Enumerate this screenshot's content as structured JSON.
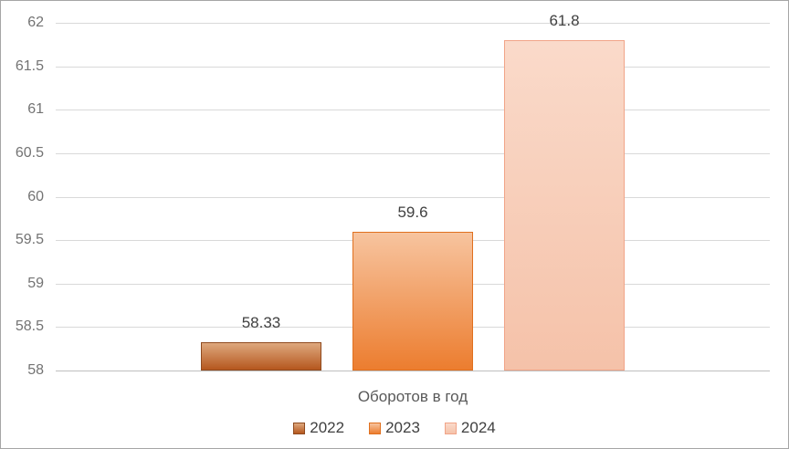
{
  "frame": {
    "background": "#ffffff",
    "border_color": "#a6a6a6"
  },
  "chart_data": {
    "type": "bar",
    "title": "",
    "categories": [
      "Оборотов в год"
    ],
    "series": [
      {
        "name": "2022",
        "value": 58.33,
        "label": "58.33",
        "fill_top": "#dea87e",
        "fill_bottom": "#b5571e",
        "border": "#8f4a1f"
      },
      {
        "name": "2023",
        "value": 59.6,
        "label": "59.6",
        "fill_top": "#f7c49f",
        "fill_bottom": "#ec7d2f",
        "border": "#e0701f"
      },
      {
        "name": "2024",
        "value": 61.8,
        "label": "61.8",
        "fill_top": "#fadaca",
        "fill_bottom": "#f5c2a9",
        "border": "#f1a488"
      }
    ],
    "xlabel": "Оборотов в год",
    "ylabel": "",
    "ylim": [
      58,
      62
    ],
    "ytick_step": 0.5,
    "yticks": [
      "62",
      "61.5",
      "61",
      "60.5",
      "60",
      "59.5",
      "59",
      "58.5",
      "58"
    ],
    "grid": true,
    "legend_position": "bottom",
    "legend_labels": [
      "2022",
      "2023",
      "2024"
    ],
    "colors": {
      "gridline": "#d9d9d9",
      "axis_line": "#bfbfbf",
      "tick_label": "#737373",
      "data_label": "#404040",
      "x_title": "#595959",
      "legend_label": "#404040"
    }
  }
}
